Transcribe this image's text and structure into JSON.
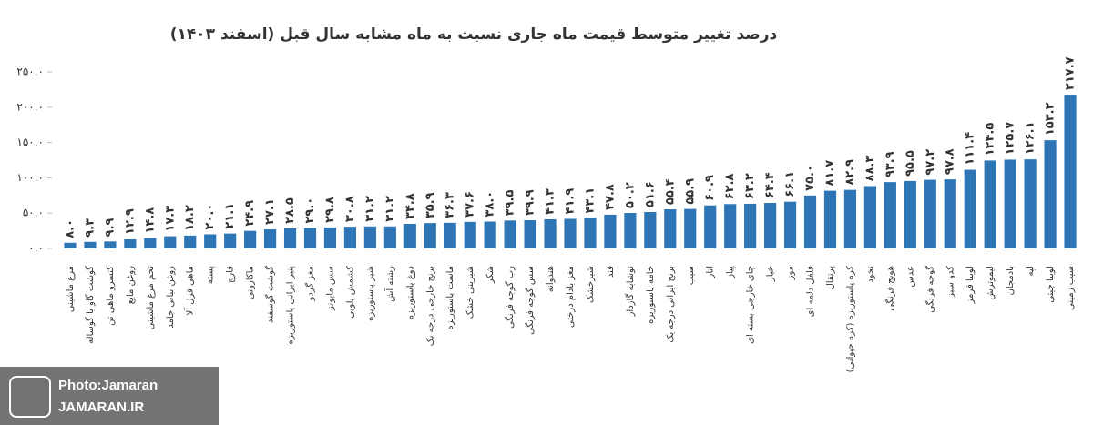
{
  "chart_data": {
    "type": "bar",
    "title": "درصد تغییر متوسط قیمت ماه جاری نسبت به ماه مشابه سال قبل (اسفند ۱۴۰۳)",
    "categories": [
      "مرغ ماشینی",
      "گوشت گاو یا گوساله",
      "کنسرو ماهی تن",
      "روغن مایع",
      "تخم مرغ ماشینی",
      "روغن نباتی جامد",
      "ماهی قزل آلا",
      "پسته",
      "قارچ",
      "ماکارونی",
      "گوشت گوسفند",
      "پنیر ایرانی پاستوریزه",
      "مغز گردو",
      "سس مایونز",
      "کشمش پلویی",
      "شیر پاستوریزه",
      "رشته آش",
      "دوغ پاستوریزه",
      "برنج خارجی درجه یک",
      "ماست پاستوریزه",
      "شیرینی خشک",
      "شکر",
      "رب گوجه فرنگی",
      "سس گوجه فرنگی",
      "هندوانه",
      "مغز بادام درختی",
      "شیرخشک",
      "قند",
      "نوشابه گازدار",
      "خامه پاستوریزه",
      "برنج ایرانی درجه یک",
      "سیب",
      "انار",
      "پیاز",
      "چای خارجی بسته ای",
      "خیار",
      "موز",
      "فلفل دلمه ای",
      "پرتقال",
      "کره پاستوریزه (کره حیوانی)",
      "نخود",
      "هویج فرنگی",
      "عدس",
      "گوجه فرنگی",
      "کدو سبز",
      "لوبیا قرمز",
      "لیموترش",
      "بادمجان",
      "لپه",
      "لوبیا چیتی",
      "سیب زمینی"
    ],
    "values": [
      8.0,
      9.3,
      9.9,
      12.9,
      14.8,
      17.3,
      18.2,
      20.0,
      21.1,
      24.9,
      27.1,
      28.5,
      29.0,
      29.8,
      30.8,
      31.2,
      31.2,
      34.8,
      35.9,
      36.3,
      37.6,
      38.0,
      39.5,
      39.9,
      41.3,
      41.9,
      43.1,
      47.8,
      50.2,
      51.6,
      55.4,
      55.9,
      60.9,
      62.8,
      63.2,
      64.4,
      66.1,
      75.0,
      81.7,
      82.9,
      88.3,
      93.9,
      95.5,
      97.2,
      97.8,
      111.4,
      124.5,
      125.7,
      126.1,
      153.2,
      217.7
    ],
    "value_labels": [
      "۸.۰",
      "۹.۳",
      "۹.۹",
      "۱۲.۹",
      "۱۴.۸",
      "۱۷.۳",
      "۱۸.۲",
      "۲۰.۰",
      "۲۱.۱",
      "۲۴.۹",
      "۲۷.۱",
      "۲۸.۵",
      "۲۹.۰",
      "۲۹.۸",
      "۳۰.۸",
      "۳۱.۲",
      "۳۱.۲",
      "۳۴.۸",
      "۳۵.۹",
      "۳۶.۳",
      "۳۷.۶",
      "۳۸.۰",
      "۳۹.۵",
      "۳۹.۹",
      "۴۱.۳",
      "۴۱.۹",
      "۴۳.۱",
      "۴۷.۸",
      "۵۰.۲",
      "۵۱.۶",
      "۵۵.۴",
      "۵۵.۹",
      "۶۰.۹",
      "۶۲.۸",
      "۶۳.۲",
      "۶۴.۴",
      "۶۶.۱",
      "۷۵.۰",
      "۸۱.۷",
      "۸۲.۹",
      "۸۸.۳",
      "۹۳.۹",
      "۹۵.۵",
      "۹۷.۲",
      "۹۷.۸",
      "۱۱۱.۴",
      "۱۲۴.۵",
      "۱۲۵.۷",
      "۱۲۶.۱",
      "۱۵۳.۲",
      "۲۱۷.۷"
    ],
    "color": "#2e75b6",
    "ylim": [
      0,
      250
    ],
    "yticks": [
      {
        "value": 0,
        "label": "۰.۰"
      },
      {
        "value": 50,
        "label": "۵۰.۰"
      },
      {
        "value": 100,
        "label": "۱۰۰.۰"
      },
      {
        "value": 150,
        "label": "۱۵۰.۰"
      },
      {
        "value": 200,
        "label": "۲۰۰.۰"
      },
      {
        "value": 250,
        "label": "۲۵۰.۰"
      }
    ],
    "grid": false
  },
  "watermark": {
    "credit": "Photo:Jamaran",
    "site": "JAMARAN.IR"
  }
}
